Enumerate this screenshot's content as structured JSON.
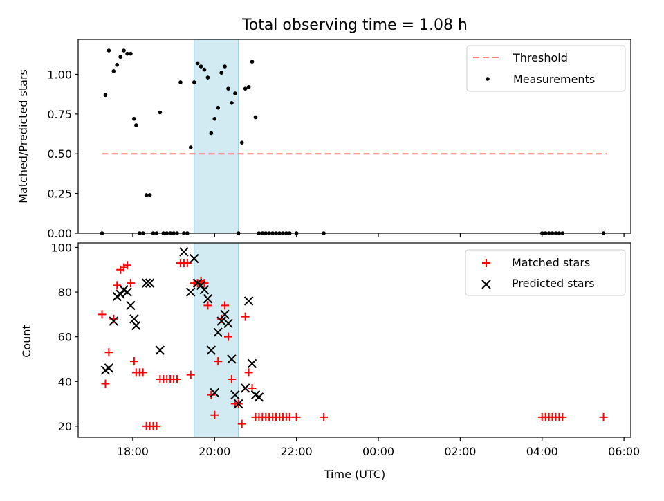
{
  "chart_data": [
    {
      "type": "scatter",
      "title": "Total observing time = 1.08 h",
      "xlabel": "",
      "ylabel": "Matched/Predicted stars",
      "ylim": [
        0,
        1.22
      ],
      "yticks": [
        0.0,
        0.25,
        0.5,
        0.75,
        1.0
      ],
      "ytick_labels": [
        "0.00",
        "0.25",
        "0.50",
        "0.75",
        "1.00"
      ],
      "highlight_band": {
        "from": "19:30",
        "to": "20:35",
        "color": "#add8e6"
      },
      "threshold": {
        "name": "Threshold",
        "value": 0.5,
        "from": "17:15",
        "to": "05:35",
        "color": "#ff7f7f"
      },
      "series": [
        {
          "name": "Measurements",
          "color": "#000000",
          "x": [
            "17:15",
            "17:20",
            "17:25",
            "17:32",
            "17:37",
            "17:42",
            "17:47",
            "17:52",
            "17:57",
            "18:02",
            "18:05",
            "18:10",
            "18:15",
            "18:20",
            "18:25",
            "18:30",
            "18:35",
            "18:40",
            "18:45",
            "18:50",
            "18:55",
            "19:00",
            "19:05",
            "19:10",
            "19:15",
            "19:20",
            "19:25",
            "19:30",
            "19:35",
            "19:40",
            "19:45",
            "19:50",
            "19:55",
            "20:00",
            "20:05",
            "20:10",
            "20:15",
            "20:20",
            "20:25",
            "20:30",
            "20:35",
            "20:40",
            "20:45",
            "20:50",
            "20:55",
            "21:00",
            "21:05",
            "21:10",
            "21:15",
            "21:20",
            "21:25",
            "21:30",
            "21:35",
            "21:40",
            "21:45",
            "21:50",
            "22:00",
            "22:40",
            "04:00",
            "04:05",
            "04:10",
            "04:15",
            "04:20",
            "04:25",
            "04:30",
            "05:30"
          ],
          "y": [
            0.0,
            0.87,
            1.15,
            1.02,
            1.06,
            1.11,
            1.15,
            1.13,
            1.13,
            0.72,
            0.68,
            0.0,
            0.0,
            0.24,
            0.24,
            0.0,
            0.0,
            0.76,
            0.0,
            0.0,
            0.0,
            0.0,
            0.0,
            0.95,
            0.0,
            0.0,
            0.54,
            0.95,
            1.07,
            1.05,
            1.03,
            0.98,
            0.63,
            0.72,
            0.79,
            1.01,
            1.05,
            0.91,
            0.82,
            0.88,
            0.0,
            0.57,
            0.91,
            0.92,
            1.08,
            0.73,
            0.0,
            0.0,
            0.0,
            0.0,
            0.0,
            0.0,
            0.0,
            0.0,
            0.0,
            0.0,
            0.0,
            0.0,
            0.0,
            0.0,
            0.0,
            0.0,
            0.0,
            0.0,
            0.0,
            0.0
          ]
        }
      ],
      "legend": {
        "placement": "top-right",
        "entries": [
          "Threshold",
          "Measurements"
        ]
      }
    },
    {
      "type": "scatter",
      "title": "",
      "xlabel": "Time (UTC)",
      "ylabel": "Count",
      "ylim": [
        15,
        102
      ],
      "yticks": [
        20,
        40,
        60,
        80,
        100
      ],
      "ytick_labels": [
        "20",
        "40",
        "60",
        "80",
        "100"
      ],
      "xlim": [
        "16:40",
        "06:10"
      ],
      "xticks": [
        "18:00",
        "20:00",
        "22:00",
        "00:00",
        "02:00",
        "04:00",
        "06:00"
      ],
      "highlight_band": {
        "from": "19:30",
        "to": "20:35",
        "color": "#add8e6"
      },
      "series": [
        {
          "name": "Matched stars",
          "marker": "plus",
          "color": "#ff0000",
          "x": [
            "17:15",
            "17:20",
            "17:25",
            "17:32",
            "17:37",
            "17:42",
            "17:47",
            "17:52",
            "17:57",
            "18:02",
            "18:05",
            "18:10",
            "18:15",
            "18:20",
            "18:25",
            "18:30",
            "18:35",
            "18:40",
            "18:45",
            "18:50",
            "18:55",
            "19:00",
            "19:05",
            "19:10",
            "19:15",
            "19:20",
            "19:25",
            "19:30",
            "19:35",
            "19:40",
            "19:45",
            "19:50",
            "19:55",
            "20:00",
            "20:05",
            "20:10",
            "20:15",
            "20:20",
            "20:25",
            "20:30",
            "20:35",
            "20:40",
            "20:45",
            "20:50",
            "20:55",
            "21:00",
            "21:05",
            "21:10",
            "21:15",
            "21:20",
            "21:25",
            "21:30",
            "21:35",
            "21:40",
            "21:45",
            "21:50",
            "22:00",
            "22:40",
            "04:00",
            "04:05",
            "04:10",
            "04:15",
            "04:20",
            "04:25",
            "04:30",
            "05:30"
          ],
          "y": [
            70,
            39,
            53,
            68,
            83,
            90,
            91,
            92,
            84,
            49,
            44,
            44,
            44,
            20,
            20,
            20,
            20,
            41,
            41,
            41,
            41,
            41,
            41,
            93,
            93,
            93,
            43,
            84,
            84,
            85,
            84,
            74,
            34,
            25,
            49,
            68,
            74,
            60,
            41,
            30,
            30,
            21,
            69,
            44,
            37,
            24,
            24,
            24,
            24,
            24,
            24,
            24,
            24,
            24,
            24,
            24,
            24,
            24,
            24,
            24,
            24,
            24,
            24,
            24,
            24,
            24
          ]
        },
        {
          "name": "Predicted stars",
          "marker": "x",
          "color": "#000000",
          "x": [
            "17:20",
            "17:25",
            "17:32",
            "17:37",
            "17:42",
            "17:47",
            "17:52",
            "17:57",
            "18:02",
            "18:05",
            "18:20",
            "18:25",
            "18:40",
            "19:15",
            "19:25",
            "19:30",
            "19:35",
            "19:40",
            "19:45",
            "19:50",
            "19:55",
            "20:00",
            "20:05",
            "20:10",
            "20:15",
            "20:20",
            "20:25",
            "20:30",
            "20:35",
            "20:45",
            "20:50",
            "20:55",
            "21:00",
            "21:05"
          ],
          "y": [
            45,
            46,
            67,
            78,
            79,
            81,
            80,
            74,
            68,
            65,
            84,
            84,
            54,
            98,
            80,
            95,
            84,
            83,
            81,
            77,
            54,
            35,
            62,
            67,
            70,
            66,
            50,
            34,
            30,
            37,
            76,
            48,
            34,
            33
          ]
        }
      ],
      "legend": {
        "placement": "top-right",
        "entries": [
          "Matched stars",
          "Predicted stars"
        ]
      }
    }
  ]
}
